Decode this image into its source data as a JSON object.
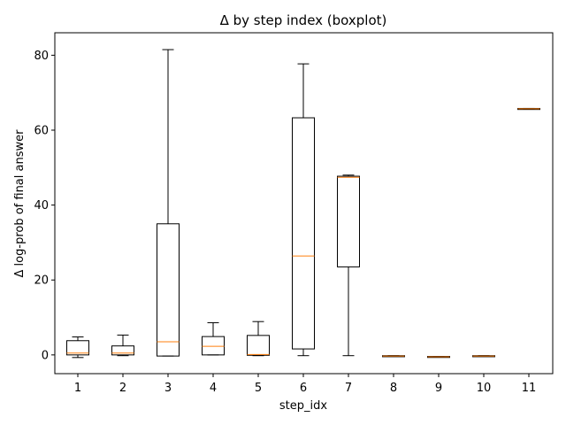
{
  "chart_data": {
    "type": "boxplot",
    "title": "Δ by step index (boxplot)",
    "xlabel": "step_idx",
    "ylabel": "Δ log-prob of final answer",
    "categories": [
      "1",
      "2",
      "3",
      "4",
      "5",
      "6",
      "7",
      "8",
      "9",
      "10",
      "11"
    ],
    "ylim": [
      -5,
      86
    ],
    "yticks": [
      0,
      20,
      40,
      60,
      80
    ],
    "grid": false,
    "box_color": "#000000",
    "median_color": "#ff7f0e",
    "boxes": [
      {
        "category": "1",
        "whisker_low": -0.7,
        "q1": 0.0,
        "median": 0.5,
        "q3": 3.8,
        "whisker_high": 4.8
      },
      {
        "category": "2",
        "whisker_low": -0.2,
        "q1": 0.0,
        "median": 0.5,
        "q3": 2.4,
        "whisker_high": 5.3
      },
      {
        "category": "3",
        "whisker_low": -0.3,
        "q1": -0.3,
        "median": 3.5,
        "q3": 35.0,
        "whisker_high": 81.5
      },
      {
        "category": "4",
        "whisker_low": 0.0,
        "q1": 0.0,
        "median": 2.3,
        "q3": 4.9,
        "whisker_high": 8.6
      },
      {
        "category": "5",
        "whisker_low": -0.2,
        "q1": -0.1,
        "median": 0.1,
        "q3": 5.2,
        "whisker_high": 8.9
      },
      {
        "category": "6",
        "whisker_low": -0.2,
        "q1": 1.6,
        "median": 26.4,
        "q3": 63.3,
        "whisker_high": 77.7
      },
      {
        "category": "7",
        "whisker_low": -0.2,
        "q1": 23.5,
        "median": 47.4,
        "q3": 47.7,
        "whisker_high": 48.0
      },
      {
        "category": "8",
        "whisker_low": -0.3,
        "q1": -0.3,
        "median": -0.3,
        "q3": -0.2,
        "whisker_high": -0.2
      },
      {
        "category": "9",
        "whisker_low": -0.6,
        "q1": -0.6,
        "median": -0.5,
        "q3": -0.4,
        "whisker_high": -0.4
      },
      {
        "category": "10",
        "whisker_low": -0.3,
        "q1": -0.3,
        "median": -0.3,
        "q3": -0.2,
        "whisker_high": -0.2
      },
      {
        "category": "11",
        "whisker_low": 65.6,
        "q1": 65.6,
        "median": 65.7,
        "q3": 65.8,
        "whisker_high": 65.8
      }
    ]
  }
}
